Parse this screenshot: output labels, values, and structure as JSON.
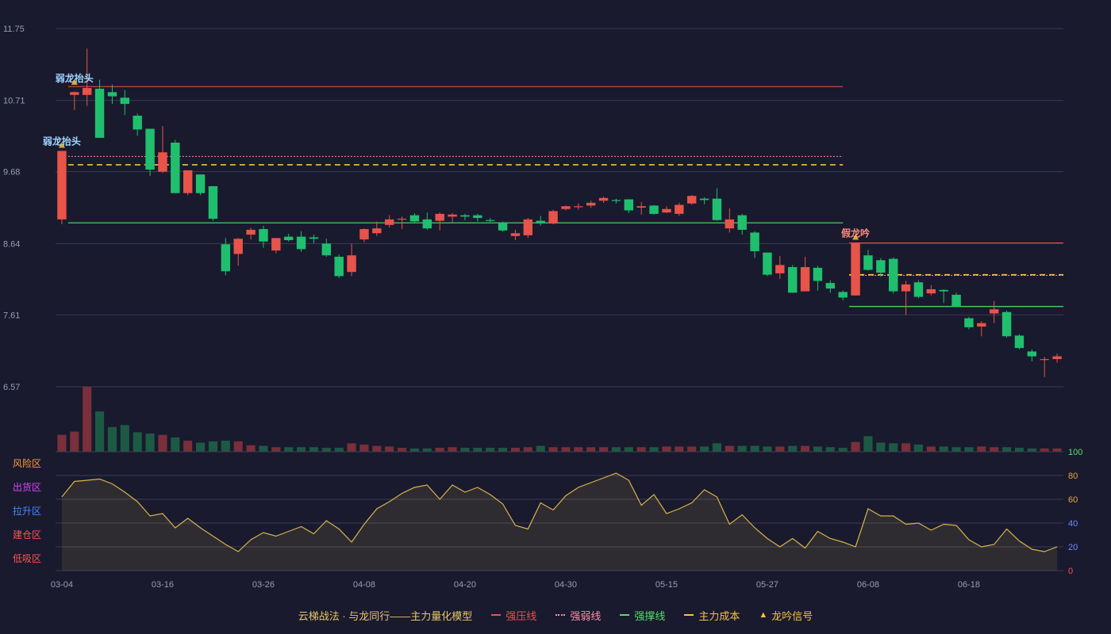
{
  "chart_data": {
    "type": "candlestick",
    "price_axis": {
      "ticks": [
        "11.75",
        "10.71",
        "9.68",
        "8.64",
        "7.61",
        "6.57"
      ],
      "ylim": [
        6.57,
        11.75
      ]
    },
    "x_ticks": [
      {
        "label": "03-04",
        "index": 0
      },
      {
        "label": "03-16",
        "index": 8
      },
      {
        "label": "03-26",
        "index": 16
      },
      {
        "label": "04-08",
        "index": 24
      },
      {
        "label": "04-20",
        "index": 32
      },
      {
        "label": "04-30",
        "index": 40
      },
      {
        "label": "05-15",
        "index": 48
      },
      {
        "label": "05-27",
        "index": 56
      },
      {
        "label": "06-08",
        "index": 64
      },
      {
        "label": "06-18",
        "index": 72
      }
    ],
    "candles": [
      [
        8.99,
        9.98,
        9.98,
        8.92
      ],
      [
        10.79,
        10.83,
        10.84,
        10.57
      ],
      [
        10.79,
        10.89,
        11.46,
        10.63
      ],
      [
        10.88,
        10.17,
        11.01,
        10.17
      ],
      [
        10.83,
        10.77,
        10.94,
        10.66
      ],
      [
        10.75,
        10.66,
        10.86,
        10.5
      ],
      [
        10.49,
        10.29,
        10.52,
        10.2
      ],
      [
        10.3,
        9.71,
        10.3,
        9.62
      ],
      [
        9.68,
        9.96,
        10.34,
        9.66
      ],
      [
        10.1,
        9.37,
        10.14,
        9.37
      ],
      [
        9.37,
        9.7,
        9.7,
        9.34
      ],
      [
        9.64,
        9.37,
        9.64,
        9.34
      ],
      [
        9.47,
        9.0,
        9.47,
        8.97
      ],
      [
        8.63,
        8.24,
        8.72,
        8.18
      ],
      [
        8.49,
        8.71,
        8.72,
        8.32
      ],
      [
        8.77,
        8.84,
        8.87,
        8.7
      ],
      [
        8.85,
        8.67,
        8.9,
        8.58
      ],
      [
        8.54,
        8.72,
        8.72,
        8.5
      ],
      [
        8.74,
        8.69,
        8.78,
        8.67
      ],
      [
        8.74,
        8.56,
        8.82,
        8.52
      ],
      [
        8.73,
        8.71,
        8.77,
        8.64
      ],
      [
        8.64,
        8.47,
        8.71,
        8.45
      ],
      [
        8.45,
        8.17,
        8.48,
        8.14
      ],
      [
        8.23,
        8.47,
        8.64,
        8.17
      ],
      [
        8.7,
        8.85,
        8.86,
        8.66
      ],
      [
        8.79,
        8.86,
        8.96,
        8.75
      ],
      [
        8.91,
        8.99,
        9.05,
        8.87
      ],
      [
        9.0,
        9.0,
        9.03,
        8.85
      ],
      [
        9.05,
        8.96,
        9.08,
        8.94
      ],
      [
        8.99,
        8.86,
        9.09,
        8.84
      ],
      [
        8.97,
        9.07,
        9.09,
        8.83
      ],
      [
        9.03,
        9.06,
        9.08,
        8.95
      ],
      [
        9.05,
        9.03,
        9.07,
        8.98
      ],
      [
        9.05,
        9.01,
        9.07,
        8.96
      ],
      [
        8.98,
        8.97,
        9.01,
        8.95
      ],
      [
        8.94,
        8.83,
        8.96,
        8.81
      ],
      [
        8.75,
        8.79,
        8.84,
        8.69
      ],
      [
        8.76,
        8.99,
        9.01,
        8.72
      ],
      [
        8.97,
        8.93,
        9.04,
        8.9
      ],
      [
        8.93,
        9.11,
        9.13,
        8.92
      ],
      [
        9.14,
        9.18,
        9.19,
        9.12
      ],
      [
        9.18,
        9.18,
        9.22,
        9.13
      ],
      [
        9.19,
        9.23,
        9.26,
        9.16
      ],
      [
        9.26,
        9.3,
        9.32,
        9.23
      ],
      [
        9.27,
        9.26,
        9.29,
        9.22
      ],
      [
        9.28,
        9.12,
        9.28,
        9.08
      ],
      [
        9.16,
        9.18,
        9.24,
        9.06
      ],
      [
        9.19,
        9.07,
        9.2,
        9.06
      ],
      [
        9.09,
        9.14,
        9.18,
        9.08
      ],
      [
        9.07,
        9.2,
        9.23,
        9.04
      ],
      [
        9.22,
        9.33,
        9.34,
        9.2
      ],
      [
        9.29,
        9.27,
        9.31,
        9.21
      ],
      [
        9.29,
        8.98,
        9.44,
        8.97
      ],
      [
        8.86,
        8.99,
        9.15,
        8.8
      ],
      [
        9.05,
        8.84,
        9.07,
        8.77
      ],
      [
        8.8,
        8.53,
        8.82,
        8.43
      ],
      [
        8.51,
        8.19,
        8.51,
        8.17
      ],
      [
        8.21,
        8.33,
        8.46,
        8.13
      ],
      [
        8.3,
        7.93,
        8.33,
        7.93
      ],
      [
        7.95,
        8.3,
        8.45,
        7.95
      ],
      [
        8.29,
        8.1,
        8.32,
        7.96
      ],
      [
        8.07,
        7.99,
        8.11,
        7.93
      ],
      [
        7.94,
        7.86,
        7.96,
        7.82
      ],
      [
        7.89,
        8.65,
        8.65,
        7.89
      ],
      [
        8.47,
        8.26,
        8.55,
        8.25
      ],
      [
        8.4,
        8.22,
        8.43,
        8.16
      ],
      [
        8.42,
        7.95,
        8.44,
        7.92
      ],
      [
        7.95,
        8.05,
        8.1,
        7.61
      ],
      [
        8.08,
        7.87,
        8.11,
        7.85
      ],
      [
        7.92,
        7.98,
        8.04,
        7.89
      ],
      [
        7.97,
        7.95,
        7.98,
        7.78
      ],
      [
        7.9,
        7.73,
        7.93,
        7.72
      ],
      [
        7.56,
        7.43,
        7.58,
        7.4
      ],
      [
        7.44,
        7.49,
        7.52,
        7.3
      ],
      [
        7.63,
        7.69,
        7.81,
        7.49
      ],
      [
        7.65,
        7.3,
        7.67,
        7.28
      ],
      [
        7.31,
        7.13,
        7.33,
        7.11
      ],
      [
        7.08,
        7.01,
        7.11,
        6.94
      ],
      [
        6.96,
        6.97,
        7.0,
        6.71
      ],
      [
        6.97,
        7.01,
        7.05,
        6.92
      ]
    ],
    "volumes": [
      26,
      31,
      100,
      62,
      38,
      41,
      30,
      28,
      26,
      22,
      17,
      14,
      16,
      17,
      16,
      10,
      9,
      7,
      7,
      7,
      7,
      6,
      6,
      13,
      11,
      9,
      8,
      6,
      5,
      5,
      6,
      7,
      6,
      6,
      6,
      6,
      6,
      7,
      9,
      7,
      7,
      7,
      7,
      7,
      7,
      7,
      7,
      7,
      8,
      8,
      8,
      8,
      13,
      9,
      9,
      9,
      8,
      8,
      9,
      9,
      8,
      7,
      6,
      15,
      24,
      14,
      13,
      13,
      11,
      8,
      8,
      7,
      7,
      8,
      7,
      7,
      6,
      5,
      5,
      5
    ],
    "lines": {
      "strong_pressure": [
        {
          "value": 10.91,
          "from": 1,
          "to": 62
        },
        {
          "value": 8.65,
          "from": 63,
          "to": 79
        }
      ],
      "strong_weak": [
        {
          "value": 9.9,
          "from": 1,
          "to": 62
        },
        {
          "value": 8.18,
          "from": 63,
          "to": 79
        }
      ],
      "strong_support": [
        {
          "value": 8.94,
          "from": 1,
          "to": 62
        },
        {
          "value": 7.73,
          "from": 63,
          "to": 79
        }
      ],
      "main_cost": [
        {
          "value": 9.78,
          "from": 1,
          "to": 62
        },
        {
          "value": 8.19,
          "from": 63,
          "to": 79
        }
      ]
    },
    "annotations": [
      {
        "text": "弱龙抬头",
        "index": 0,
        "price": 9.98,
        "color": "#9fd6ff"
      },
      {
        "text": "弱龙抬头",
        "index": 1,
        "price": 10.89,
        "color": "#9fd6ff"
      },
      {
        "text": "假龙吟",
        "index": 63,
        "price": 8.65,
        "color": "#ff8a80"
      }
    ],
    "oscillator": {
      "ticks": [
        "100",
        "80",
        "60",
        "40",
        "20",
        "0"
      ],
      "ylim": [
        0,
        100
      ],
      "zones": [
        {
          "label": "风险区",
          "value": 80,
          "color": "#ff9a3c"
        },
        {
          "label": "出货区",
          "value": 60,
          "color": "#e040fb"
        },
        {
          "label": "拉升区",
          "value": 40,
          "color": "#448aff"
        },
        {
          "label": "建仓区",
          "value": 20,
          "color": "#ff5252"
        },
        {
          "label": "低吸区",
          "value": 0,
          "color": "#ff5252"
        }
      ],
      "values": [
        62,
        75,
        76,
        77,
        73,
        66,
        58,
        46,
        48,
        36,
        44,
        36,
        29,
        22,
        16,
        26,
        32,
        29,
        33,
        37,
        31,
        42,
        35,
        24,
        39,
        52,
        58,
        65,
        70,
        72,
        60,
        72,
        66,
        70,
        64,
        56,
        38,
        35,
        57,
        51,
        63,
        70,
        74,
        78,
        82,
        76,
        55,
        64,
        48,
        52,
        57,
        68,
        62,
        39,
        47,
        36,
        27,
        20,
        27,
        19,
        33,
        27,
        24,
        20,
        52,
        46,
        46,
        39,
        40,
        34,
        39,
        38,
        26,
        20,
        22,
        35,
        25,
        18,
        16,
        20
      ]
    },
    "legend": [
      {
        "key": "model",
        "label": "云梯战法 · 与龙同行——主力量化模型"
      },
      {
        "key": "strong_pressure",
        "label": "强压线",
        "color": "#e8534a"
      },
      {
        "key": "strong_weak",
        "label": "强弱线",
        "color": "#ff8fa3"
      },
      {
        "key": "strong_support",
        "label": "强撑线",
        "color": "#52e06a"
      },
      {
        "key": "main_cost",
        "label": "主力成本",
        "color": "#f5c242"
      },
      {
        "key": "signal",
        "label": "龙吟信号",
        "color": "#f5c242"
      }
    ],
    "colors": {
      "up": "#e8534a",
      "down": "#1fbf6e",
      "grid": "#3a3c54",
      "axis_text": "#9a9cb0",
      "osc_line": "#d8b34a"
    }
  }
}
